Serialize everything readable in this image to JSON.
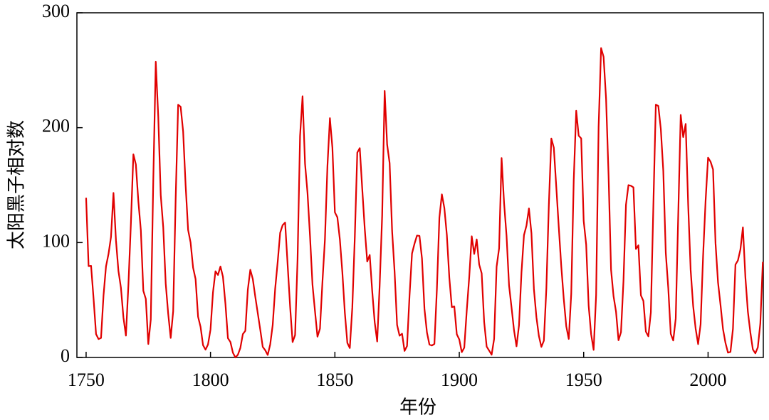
{
  "chart_data": {
    "type": "line",
    "xlabel": "年份",
    "ylabel": "太阳黑子相对数",
    "xlim": [
      1746.3,
      2022.2
    ],
    "ylim": [
      0,
      300
    ],
    "xticks": [
      1750,
      1800,
      1850,
      1900,
      1950,
      2000
    ],
    "yticks": [
      0,
      100,
      200,
      300
    ],
    "series": [
      {
        "color": "#e00000",
        "x": [
          1750,
          1751,
          1752,
          1753,
          1754,
          1755,
          1756,
          1757,
          1758,
          1759,
          1760,
          1761,
          1762,
          1763,
          1764,
          1765,
          1766,
          1767,
          1768,
          1769,
          1770,
          1771,
          1772,
          1773,
          1774,
          1775,
          1776,
          1777,
          1778,
          1779,
          1780,
          1781,
          1782,
          1783,
          1784,
          1785,
          1786,
          1787,
          1788,
          1789,
          1790,
          1791,
          1792,
          1793,
          1794,
          1795,
          1796,
          1797,
          1798,
          1799,
          1800,
          1801,
          1802,
          1803,
          1804,
          1805,
          1806,
          1807,
          1808,
          1809,
          1810,
          1811,
          1812,
          1813,
          1814,
          1815,
          1816,
          1817,
          1818,
          1819,
          1820,
          1821,
          1822,
          1823,
          1824,
          1825,
          1826,
          1827,
          1828,
          1829,
          1830,
          1831,
          1832,
          1833,
          1834,
          1835,
          1836,
          1837,
          1838,
          1839,
          1840,
          1841,
          1842,
          1843,
          1844,
          1845,
          1846,
          1847,
          1848,
          1849,
          1850,
          1851,
          1852,
          1853,
          1854,
          1855,
          1856,
          1857,
          1858,
          1859,
          1860,
          1861,
          1862,
          1863,
          1864,
          1865,
          1866,
          1867,
          1868,
          1869,
          1870,
          1871,
          1872,
          1873,
          1874,
          1875,
          1876,
          1877,
          1878,
          1879,
          1880,
          1881,
          1882,
          1883,
          1884,
          1885,
          1886,
          1887,
          1888,
          1889,
          1890,
          1891,
          1892,
          1893,
          1894,
          1895,
          1896,
          1897,
          1898,
          1899,
          1900,
          1901,
          1902,
          1903,
          1904,
          1905,
          1906,
          1907,
          1908,
          1909,
          1910,
          1911,
          1912,
          1913,
          1914,
          1915,
          1916,
          1917,
          1918,
          1919,
          1920,
          1921,
          1922,
          1923,
          1924,
          1925,
          1926,
          1927,
          1928,
          1929,
          1930,
          1931,
          1932,
          1933,
          1934,
          1935,
          1936,
          1937,
          1938,
          1939,
          1940,
          1941,
          1942,
          1943,
          1944,
          1945,
          1946,
          1947,
          1948,
          1949,
          1950,
          1951,
          1952,
          1953,
          1954,
          1955,
          1956,
          1957,
          1958,
          1959,
          1960,
          1961,
          1962,
          1963,
          1964,
          1965,
          1966,
          1967,
          1968,
          1969,
          1970,
          1971,
          1972,
          1973,
          1974,
          1975,
          1976,
          1977,
          1978,
          1979,
          1980,
          1981,
          1982,
          1983,
          1984,
          1985,
          1986,
          1987,
          1988,
          1989,
          1990,
          1991,
          1992,
          1993,
          1994,
          1995,
          1996,
          1997,
          1998,
          1999,
          2000,
          2001,
          2002,
          2003,
          2004,
          2005,
          2006,
          2007,
          2008,
          2009,
          2010,
          2011,
          2012,
          2013,
          2014,
          2015,
          2016,
          2017,
          2018,
          2019,
          2020,
          2021,
          2022
        ],
        "values": [
          139.0,
          79.5,
          79.7,
          51.2,
          20.3,
          16.0,
          17.0,
          54.0,
          79.3,
          90.0,
          104.8,
          143.2,
          102.0,
          75.2,
          60.7,
          34.8,
          19.0,
          63.0,
          116.3,
          176.8,
          168.0,
          136.0,
          110.8,
          58.0,
          51.0,
          11.7,
          33.0,
          154.2,
          257.3,
          209.8,
          141.3,
          113.5,
          64.2,
          38.0,
          17.0,
          40.2,
          138.2,
          220.0,
          218.2,
          196.8,
          149.8,
          111.0,
          100.0,
          78.2,
          68.3,
          35.5,
          26.7,
          10.7,
          6.8,
          11.3,
          24.2,
          56.7,
          75.0,
          71.8,
          79.2,
          70.3,
          46.8,
          16.8,
          13.5,
          4.2,
          0.0,
          2.3,
          8.3,
          20.3,
          23.2,
          59.0,
          76.3,
          68.3,
          52.9,
          38.5,
          24.2,
          9.2,
          6.3,
          2.2,
          11.4,
          28.2,
          59.9,
          83.0,
          108.5,
          115.2,
          117.4,
          80.8,
          44.3,
          13.4,
          19.5,
          85.8,
          192.9,
          227.3,
          168.7,
          143.0,
          105.5,
          63.3,
          40.3,
          18.1,
          25.1,
          65.8,
          102.7,
          166.3,
          208.3,
          182.5,
          126.3,
          122.0,
          102.7,
          74.1,
          39.0,
          12.7,
          8.2,
          43.4,
          104.4,
          178.3,
          182.2,
          146.6,
          112.1,
          83.5,
          89.2,
          57.8,
          30.7,
          13.9,
          62.8,
          123.6,
          232.0,
          185.3,
          169.2,
          110.1,
          74.5,
          28.3,
          18.9,
          20.7,
          5.7,
          10.0,
          53.7,
          90.5,
          99.0,
          106.1,
          105.8,
          86.3,
          42.4,
          21.8,
          11.2,
          10.4,
          11.8,
          59.5,
          121.7,
          142.0,
          130.0,
          106.6,
          69.4,
          43.8,
          44.4,
          20.2,
          15.7,
          4.6,
          8.5,
          40.8,
          70.1,
          105.5,
          90.1,
          102.8,
          80.9,
          73.2,
          30.9,
          9.5,
          6.0,
          2.4,
          16.1,
          79.0,
          95.0,
          173.6,
          134.6,
          105.7,
          62.7,
          43.5,
          23.7,
          9.7,
          27.9,
          74.0,
          106.5,
          114.7,
          129.7,
          108.2,
          59.4,
          35.1,
          18.6,
          9.2,
          14.6,
          60.2,
          132.8,
          190.6,
          182.6,
          148.0,
          113.0,
          79.2,
          50.8,
          27.1,
          16.1,
          55.3,
          154.3,
          214.7,
          193.0,
          190.7,
          118.9,
          98.3,
          45.0,
          20.1,
          6.6,
          54.2,
          200.7,
          269.3,
          261.7,
          225.1,
          159.0,
          76.4,
          53.4,
          39.9,
          15.0,
          22.0,
          66.8,
          132.9,
          150.0,
          149.4,
          148.0,
          94.4,
          97.6,
          54.1,
          49.2,
          22.5,
          18.4,
          39.3,
          131.0,
          220.1,
          218.9,
          198.9,
          162.4,
          91.0,
          60.5,
          20.6,
          14.8,
          33.9,
          123.0,
          211.1,
          191.8,
          203.3,
          133.0,
          76.1,
          44.9,
          25.1,
          11.6,
          28.9,
          88.3,
          136.3,
          173.9,
          170.4,
          163.6,
          99.3,
          65.3,
          45.8,
          24.7,
          12.6,
          4.2,
          4.8,
          24.9,
          80.8,
          84.5,
          94.0,
          113.3,
          69.8,
          39.8,
          21.7,
          7.0,
          3.6,
          8.8,
          29.6,
          83.2
        ]
      }
    ]
  }
}
